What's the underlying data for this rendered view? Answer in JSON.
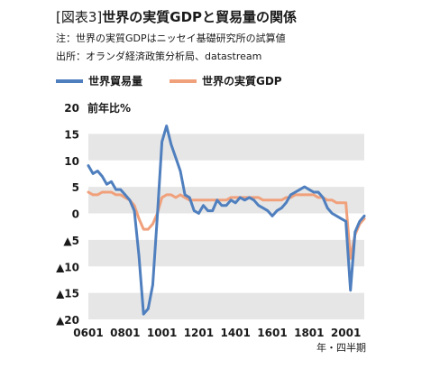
{
  "header": {
    "tag": "[図表3]",
    "title": "世界の実質GDPと貿易量の関係",
    "note": "注：世界の実質GDPはニッセイ基礎研究所の試算値",
    "source": "出所：オランダ経済政策分析局、datastream"
  },
  "colors": {
    "trade": "#4f7fbe",
    "gdp": "#f0a17c",
    "band": "#e6e6e6"
  },
  "chart_data": {
    "type": "line",
    "title": "世界の実質GDPと貿易量の関係",
    "ylabel": "前年比%",
    "xlabel": "年・四半期",
    "ylim": [
      -20,
      20
    ],
    "yticks": [
      20,
      15,
      10,
      5,
      0,
      -5,
      -10,
      -15,
      -20
    ],
    "ytick_labels": [
      "20",
      "15",
      "10",
      "5",
      "0",
      "▲5",
      "▲10",
      "▲15",
      "▲20"
    ],
    "xtick_labels": [
      "0601",
      "0801",
      "1001",
      "1201",
      "1401",
      "1601",
      "1801",
      "2001"
    ],
    "legend": "top-left",
    "grid": "alternating horizontal bands",
    "x": [
      "0601",
      "0602",
      "0603",
      "0604",
      "0701",
      "0702",
      "0703",
      "0704",
      "0801",
      "0802",
      "0803",
      "0804",
      "0901",
      "0902",
      "0903",
      "0904",
      "1001",
      "1002",
      "1003",
      "1004",
      "1101",
      "1102",
      "1103",
      "1104",
      "1201",
      "1202",
      "1203",
      "1204",
      "1301",
      "1302",
      "1303",
      "1304",
      "1401",
      "1402",
      "1403",
      "1404",
      "1501",
      "1502",
      "1503",
      "1504",
      "1601",
      "1602",
      "1603",
      "1604",
      "1701",
      "1702",
      "1703",
      "1704",
      "1801",
      "1802",
      "1803",
      "1804",
      "1901",
      "1902",
      "1903",
      "1904",
      "2001",
      "2002",
      "2003",
      "2004",
      "2101"
    ],
    "series": [
      {
        "name": "世界貿易量",
        "values": [
          9.0,
          7.5,
          8.0,
          7.0,
          5.5,
          6.0,
          4.5,
          4.5,
          3.5,
          2.5,
          0.5,
          -8.0,
          -19.0,
          -18.0,
          -13.5,
          -0.5,
          13.5,
          16.5,
          13.0,
          10.5,
          8.0,
          3.5,
          3.0,
          0.5,
          0.0,
          1.5,
          0.5,
          0.5,
          2.5,
          1.5,
          1.5,
          2.5,
          2.0,
          3.0,
          2.5,
          3.0,
          2.5,
          1.5,
          1.0,
          0.5,
          -0.5,
          0.5,
          1.0,
          2.0,
          3.5,
          4.0,
          4.5,
          5.0,
          4.5,
          4.0,
          4.0,
          3.0,
          1.0,
          0.0,
          -0.5,
          -1.0,
          -1.5,
          -14.5,
          -3.5,
          -1.5,
          -0.5
        ]
      },
      {
        "name": "世界の実質GDP",
        "values": [
          4.0,
          3.5,
          3.5,
          4.0,
          4.0,
          4.0,
          3.5,
          3.5,
          3.0,
          2.5,
          1.5,
          -1.0,
          -3.0,
          -3.0,
          -2.0,
          0.0,
          3.0,
          3.5,
          3.5,
          3.0,
          3.5,
          3.0,
          2.5,
          2.5,
          2.5,
          2.5,
          2.5,
          2.5,
          2.5,
          2.5,
          2.5,
          3.0,
          3.0,
          3.0,
          3.0,
          3.0,
          3.0,
          3.0,
          2.5,
          2.5,
          2.5,
          2.5,
          2.5,
          3.0,
          3.0,
          3.5,
          3.5,
          3.5,
          3.5,
          3.5,
          3.0,
          3.0,
          2.5,
          2.5,
          2.0,
          2.0,
          2.0,
          -8.5,
          -4.0,
          -2.0,
          -1.0
        ]
      }
    ]
  }
}
